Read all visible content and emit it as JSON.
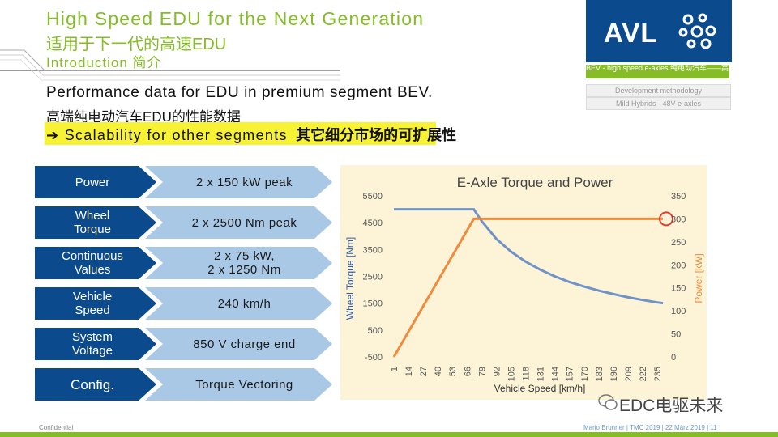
{
  "header": {
    "title_en": "High Speed EDU for the Next Generation",
    "title_cn": "适用于下一代的高速EDU",
    "subtitle": "Introduction 简介"
  },
  "logo": {
    "text": "AVL",
    "bg_color": "#0b4a8c"
  },
  "nav": [
    {
      "label": "BEV - high speed e-axles 纯电动汽车——高速电桥",
      "active": true
    },
    {
      "label": "Development methodology",
      "active": false
    },
    {
      "label": "Mild Hybrids - 48V e-axles",
      "active": false
    }
  ],
  "body": {
    "performance_en": "Performance data for EDU in premium segment BEV.",
    "performance_cn": "高端纯电动汽车EDU的性能数据",
    "scalability_arrow": "➔",
    "scalability_en": "Scalability for other segments",
    "scalability_cn": "其它细分市场的可扩展性"
  },
  "specs": [
    {
      "label": "Power",
      "value": "2 x 150 kW peak"
    },
    {
      "label": "Wheel\nTorque",
      "value": "2 x 2500 Nm peak"
    },
    {
      "label": "Continuous\nValues",
      "value": "2 x 75 kW,\n2 x 1250 Nm"
    },
    {
      "label": "Vehicle\nSpeed",
      "value": "240 km/h"
    },
    {
      "label": "System\nVoltage",
      "value": "850 V charge end"
    },
    {
      "label": "Config.",
      "value": "Torque Vectoring"
    }
  ],
  "chart_data": {
    "type": "line",
    "title": "E-Axle Torque and Power",
    "xlabel": "Vehicle Speed [km/h]",
    "ylabel": "Wheel Torque [Nm]",
    "y2label": "Power [kW]",
    "x_ticks": [
      "1",
      "14",
      "27",
      "40",
      "53",
      "66",
      "79",
      "92",
      "105",
      "118",
      "131",
      "144",
      "157",
      "170",
      "183",
      "196",
      "209",
      "222",
      "235"
    ],
    "ylim": [
      -500,
      5500
    ],
    "y_ticks": [
      "5500",
      "4500",
      "3500",
      "2500",
      "1500",
      "500",
      "-500"
    ],
    "y2lim": [
      0,
      350
    ],
    "y2_ticks": [
      "350",
      "300",
      "250",
      "200",
      "150",
      "100",
      "50",
      "0"
    ],
    "series": [
      {
        "name": "Wheel Torque",
        "axis": "left",
        "color": "#6f93c6",
        "x": [
          1,
          14,
          27,
          40,
          53,
          66,
          72,
          79,
          92,
          105,
          118,
          131,
          144,
          157,
          170,
          183,
          196,
          209,
          222,
          235,
          240
        ],
        "y": [
          5000,
          5000,
          5000,
          5000,
          5000,
          5000,
          5000,
          4560,
          3900,
          3420,
          3050,
          2750,
          2500,
          2290,
          2120,
          1970,
          1840,
          1720,
          1620,
          1530,
          1500
        ]
      },
      {
        "name": "Power",
        "axis": "right",
        "color": "#f08a3c",
        "x": [
          1,
          72,
          240
        ],
        "y": [
          0,
          300,
          300
        ]
      }
    ],
    "annotation": {
      "type": "circle",
      "x": 240,
      "y2": 300,
      "color": "#e43a2c"
    },
    "grid": false,
    "background": "#fdf4d8"
  },
  "footer": {
    "left": "Confidential",
    "right": "Mario Brunner | TMC 2019 | 22 März 2019 | 11",
    "watermark": "EDC电驱未来"
  },
  "colors": {
    "accent_green": "#86bc25",
    "navy": "#0b4a8c",
    "light_blue": "#a9c8e6",
    "highlight_yellow": "#f7f233"
  }
}
